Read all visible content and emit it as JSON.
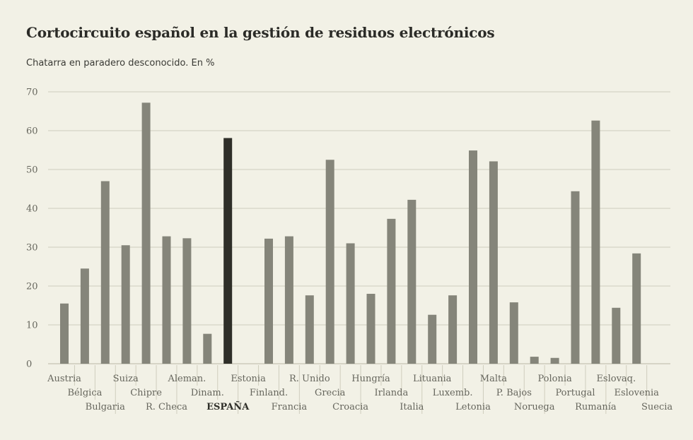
{
  "header": {
    "title": "Cortocircuito español en la gestión de residuos electrónicos",
    "subtitle": "Chatarra en paradero desconocido. En %"
  },
  "colors": {
    "bar": "#85857a",
    "highlight": "#2f2f29",
    "grid": "#cfcdbd",
    "text": "#66665d",
    "background": "#f2f1e6"
  },
  "chart_data": {
    "type": "bar",
    "title": "Cortocircuito español en la gestión de residuos electrónicos",
    "subtitle": "Chatarra en paradero desconocido. En %",
    "xlabel": "",
    "ylabel": "",
    "ylim": [
      0,
      70
    ],
    "yticks": [
      0,
      10,
      20,
      30,
      40,
      50,
      60,
      70
    ],
    "grid": true,
    "highlight": "ESPAÑA",
    "categories": [
      "Austria",
      "Bélgica",
      "Bulgaria",
      "Suiza",
      "Chipre",
      "R. Checa",
      "Aleman.",
      "Dinam.",
      "ESPAÑA",
      "Estonia",
      "Finland.",
      "Francia",
      "R. Unido",
      "Grecia",
      "Croacia",
      "Hungría",
      "Irlanda",
      "Italia",
      "Lituania",
      "Luxemb.",
      "Letonia",
      "Malta",
      "P. Bajos",
      "Noruega",
      "Polonia",
      "Portugal",
      "Rumanía",
      "Eslovaq.",
      "Eslovenia",
      "Suecia"
    ],
    "values": [
      15.5,
      24.5,
      47,
      30.5,
      67.2,
      32.8,
      32.3,
      7.7,
      58.1,
      0,
      32.2,
      32.8,
      17.6,
      52.5,
      31,
      18,
      37.3,
      42.2,
      12.6,
      17.6,
      54.9,
      52.1,
      15.8,
      1.8,
      1.5,
      44.4,
      62.6,
      14.4,
      28.4,
      0
    ]
  }
}
